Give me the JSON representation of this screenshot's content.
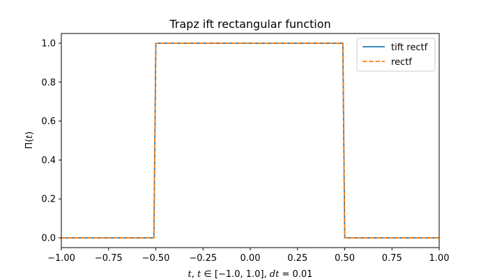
{
  "chart_data": {
    "type": "line",
    "title": "Trapz ift rectangular function",
    "xlabel": "t, t ∈ [−1.0, 1.0], dt = 0.01",
    "ylabel": "Π(t)",
    "xlim": [
      -1.0,
      1.0
    ],
    "ylim": [
      -0.05,
      1.05
    ],
    "xticks": [
      -1.0,
      -0.75,
      -0.5,
      -0.25,
      0.0,
      0.25,
      0.5,
      0.75,
      1.0
    ],
    "xtick_labels": [
      "−1.00",
      "−0.75",
      "−0.50",
      "−0.25",
      "0.00",
      "0.25",
      "0.50",
      "0.75",
      "1.00"
    ],
    "yticks": [
      0.0,
      0.2,
      0.4,
      0.6,
      0.8,
      1.0
    ],
    "ytick_labels": [
      "0.0",
      "0.2",
      "0.4",
      "0.6",
      "0.8",
      "1.0"
    ],
    "grid": false,
    "legend_position": "top-right",
    "series": [
      {
        "name": "tift rectf",
        "color": "#1f77b4",
        "style": "solid",
        "x": [
          -1.0,
          -0.51,
          -0.5,
          0.49,
          0.5,
          1.0
        ],
        "y": [
          0.0,
          0.0,
          1.0,
          1.0,
          0.0,
          0.0
        ]
      },
      {
        "name": "rectf",
        "color": "#ff7f0e",
        "style": "dashed",
        "x": [
          -1.0,
          -0.51,
          -0.5,
          0.49,
          0.5,
          1.0
        ],
        "y": [
          0.0,
          0.0,
          1.0,
          1.0,
          0.0,
          0.0
        ]
      }
    ]
  }
}
